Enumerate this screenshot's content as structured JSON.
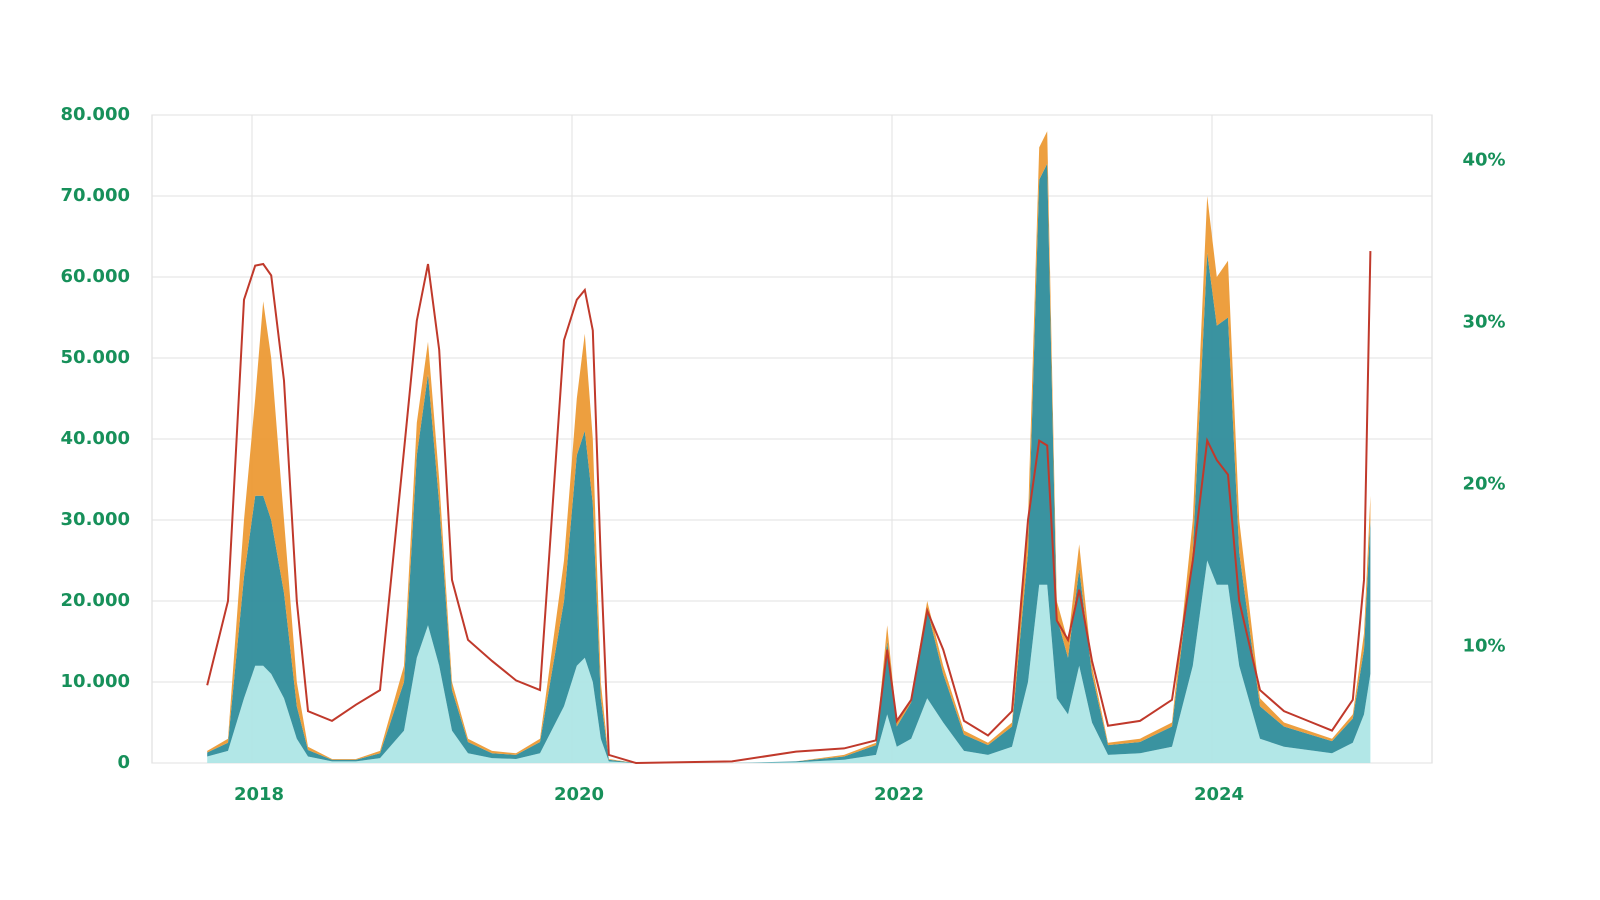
{
  "chart_data": {
    "type": "area",
    "stacked": true,
    "grid": true,
    "x": [
      2017.72,
      2017.85,
      2017.95,
      2018.02,
      2018.07,
      2018.12,
      2018.2,
      2018.28,
      2018.35,
      2018.5,
      2018.65,
      2018.8,
      2018.95,
      2019.03,
      2019.1,
      2019.17,
      2019.25,
      2019.35,
      2019.5,
      2019.65,
      2019.8,
      2019.95,
      2020.03,
      2020.08,
      2020.13,
      2020.18,
      2020.23,
      2020.4,
      2021.0,
      2021.4,
      2021.7,
      2021.9,
      2021.97,
      2022.03,
      2022.12,
      2022.22,
      2022.32,
      2022.45,
      2022.6,
      2022.75,
      2022.85,
      2022.92,
      2022.97,
      2023.03,
      2023.1,
      2023.17,
      2023.25,
      2023.35,
      2023.55,
      2023.75,
      2023.88,
      2023.97,
      2024.03,
      2024.1,
      2024.17,
      2024.3,
      2024.45,
      2024.6,
      2024.75,
      2024.88,
      2024.95,
      2024.99
    ],
    "series": [
      {
        "color": "#aee6e6",
        "values": [
          800,
          1500,
          8000,
          12000,
          12000,
          11000,
          8000,
          3000,
          800,
          200,
          200,
          600,
          4000,
          13000,
          17000,
          12000,
          4000,
          1200,
          600,
          500,
          1200,
          7000,
          12000,
          13000,
          10000,
          3000,
          200,
          0,
          0,
          100,
          400,
          1000,
          6000,
          2000,
          3000,
          8000,
          5000,
          1500,
          1000,
          2000,
          10000,
          22000,
          22000,
          8000,
          6000,
          12000,
          5000,
          1000,
          1200,
          2000,
          12000,
          25000,
          22000,
          22000,
          12000,
          3000,
          2000,
          1600,
          1200,
          2500,
          6000,
          11000
        ]
      },
      {
        "color": "#2f8d9b",
        "values": [
          500,
          1000,
          15000,
          21000,
          21000,
          19000,
          13000,
          4000,
          800,
          200,
          200,
          600,
          6000,
          25000,
          31000,
          20000,
          5000,
          1400,
          600,
          500,
          1400,
          13000,
          26000,
          28000,
          22000,
          5000,
          200,
          0,
          0,
          100,
          400,
          1200,
          9000,
          2500,
          4500,
          11000,
          6000,
          2000,
          1200,
          2500,
          16000,
          50000,
          52000,
          10000,
          7000,
          12000,
          6000,
          1200,
          1400,
          2500,
          14000,
          38000,
          32000,
          33000,
          14000,
          4000,
          2500,
          2000,
          1500,
          3000,
          8000,
          19000
        ]
      },
      {
        "color": "#ec9a35",
        "values": [
          200,
          500,
          7000,
          12000,
          24000,
          20000,
          9000,
          3000,
          400,
          100,
          100,
          300,
          2000,
          4000,
          4000,
          3000,
          1000,
          400,
          300,
          200,
          400,
          5000,
          7000,
          12000,
          8000,
          2000,
          100,
          0,
          0,
          0,
          200,
          300,
          2000,
          500,
          500,
          1000,
          1000,
          500,
          300,
          500,
          4000,
          4000,
          4000,
          2000,
          2000,
          3000,
          1000,
          300,
          400,
          500,
          4000,
          7000,
          6000,
          7000,
          4000,
          1000,
          500,
          400,
          300,
          500,
          2000,
          3000
        ]
      },
      {
        "color": "#c0392b",
        "axis": "y2",
        "values": [
          7.6,
          12.8,
          31.4,
          33.5,
          33.6,
          32.9,
          26.4,
          12.8,
          6.0,
          5.4,
          6.4,
          7.3,
          22.1,
          30.1,
          33.6,
          28.3,
          14.1,
          10.4,
          9.1,
          7.9,
          7.3,
          28.9,
          31.4,
          32.0,
          29.5,
          15.3,
          3.3,
          2.8,
          2.9,
          3.5,
          3.7,
          4.2,
          9.8,
          5.4,
          6.7,
          12.2,
          9.8,
          5.4,
          4.5,
          6.0,
          17.8,
          22.7,
          22.4,
          11.6,
          10.4,
          13.5,
          9.1,
          5.1,
          5.4,
          6.7,
          15.3,
          22.7,
          21.5,
          20.6,
          12.8,
          7.3,
          6.0,
          5.4,
          4.8,
          6.7,
          14.1,
          34.4
        ]
      }
    ],
    "xlim": [
      2017.375,
      2025.375
    ],
    "xticks": [
      2018,
      2020,
      2022,
      2024
    ],
    "ylim": [
      0,
      80000
    ],
    "yticks": [
      0,
      {
        "value": 10000,
        "label": "10.000"
      },
      {
        "value": 20000,
        "label": "20.000"
      },
      {
        "value": 30000,
        "label": "30.000"
      },
      {
        "value": 40000,
        "label": "40.000"
      },
      {
        "value": 50000,
        "label": "50.000"
      },
      {
        "value": 60000,
        "label": "60.000"
      },
      {
        "value": 70000,
        "label": "70.000"
      },
      {
        "value": 80000,
        "label": "80.000"
      }
    ],
    "y2lim": [
      2.8,
      42.8
    ],
    "y2ticks": [
      {
        "value": 10,
        "label": "10%"
      },
      {
        "value": 20,
        "label": "20%"
      },
      {
        "value": 30,
        "label": "30%"
      },
      {
        "value": 40,
        "label": "40%"
      }
    ]
  }
}
